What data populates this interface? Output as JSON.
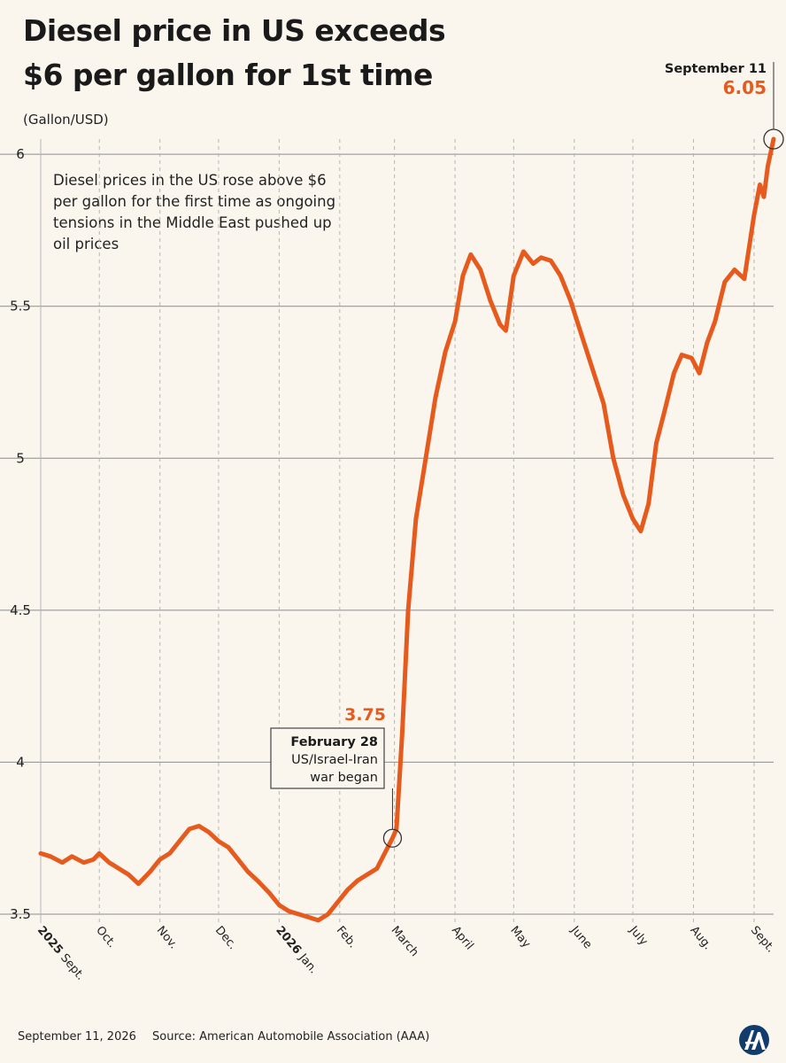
{
  "header": {
    "title_line1": "Diesel price in US exceeds",
    "title_line2": "$6 per gallon for 1st time",
    "unit_label": "(Gallon/USD)",
    "annotation": "Diesel prices in the US rose above $6 per gallon for the first time as ongoing tensions in the Middle East pushed up oil prices"
  },
  "footer": {
    "date": "September 11, 2026",
    "source": "Source: American Automobile Association (AAA)"
  },
  "colors": {
    "line": "#e65a1e",
    "grid": "#8c8c8c",
    "background": "#faf6ee"
  },
  "logo_icon": "aa-logo-icon",
  "chart_data": {
    "type": "line",
    "title": "Diesel price in US exceeds $6 per gallon for 1st time",
    "ylabel": "(Gallon/USD)",
    "xlabel": "",
    "ylim": [
      3.5,
      6.05
    ],
    "yticks": [
      3.5,
      4,
      4.5,
      5,
      5.5,
      6
    ],
    "ytick_labels": [
      "3.5",
      "4",
      "4.5",
      "5",
      "5.5",
      "6"
    ],
    "grid": "horizontal and vertical dashed",
    "xlim": [
      "2025-09-01",
      "2026-09-11"
    ],
    "xticks": [
      {
        "date": "2025-09-01",
        "label": "Sept.",
        "year": "2025"
      },
      {
        "date": "2025-10-01",
        "label": "Oct."
      },
      {
        "date": "2025-11-01",
        "label": "Nov."
      },
      {
        "date": "2025-12-01",
        "label": "Dec."
      },
      {
        "date": "2026-01-01",
        "label": "Jan.",
        "year": "2026"
      },
      {
        "date": "2026-02-01",
        "label": "Feb."
      },
      {
        "date": "2026-03-01",
        "label": "March"
      },
      {
        "date": "2026-04-01",
        "label": "April"
      },
      {
        "date": "2026-05-01",
        "label": "May"
      },
      {
        "date": "2026-06-01",
        "label": "June"
      },
      {
        "date": "2026-07-01",
        "label": "July"
      },
      {
        "date": "2026-08-01",
        "label": "Aug."
      },
      {
        "date": "2026-09-01",
        "label": "Sept."
      }
    ],
    "series": [
      {
        "points": [
          [
            "2025-09-01",
            3.7
          ],
          [
            "2025-09-06",
            3.69
          ],
          [
            "2025-09-12",
            3.67
          ],
          [
            "2025-09-17",
            3.69
          ],
          [
            "2025-09-23",
            3.67
          ],
          [
            "2025-09-28",
            3.68
          ],
          [
            "2025-10-01",
            3.7
          ],
          [
            "2025-10-06",
            3.67
          ],
          [
            "2025-10-11",
            3.65
          ],
          [
            "2025-10-16",
            3.63
          ],
          [
            "2025-10-21",
            3.6
          ],
          [
            "2025-10-27",
            3.64
          ],
          [
            "2025-11-01",
            3.68
          ],
          [
            "2025-11-06",
            3.7
          ],
          [
            "2025-11-11",
            3.74
          ],
          [
            "2025-11-16",
            3.78
          ],
          [
            "2025-11-21",
            3.79
          ],
          [
            "2025-11-26",
            3.77
          ],
          [
            "2025-12-01",
            3.74
          ],
          [
            "2025-12-06",
            3.72
          ],
          [
            "2025-12-11",
            3.68
          ],
          [
            "2025-12-16",
            3.64
          ],
          [
            "2025-12-21",
            3.61
          ],
          [
            "2025-12-27",
            3.57
          ],
          [
            "2026-01-01",
            3.53
          ],
          [
            "2026-01-06",
            3.51
          ],
          [
            "2026-01-11",
            3.5
          ],
          [
            "2026-01-16",
            3.49
          ],
          [
            "2026-01-21",
            3.48
          ],
          [
            "2026-01-26",
            3.5
          ],
          [
            "2026-01-31",
            3.54
          ],
          [
            "2026-02-05",
            3.58
          ],
          [
            "2026-02-10",
            3.61
          ],
          [
            "2026-02-15",
            3.63
          ],
          [
            "2026-02-20",
            3.65
          ],
          [
            "2026-02-24",
            3.7
          ],
          [
            "2026-02-28",
            3.75
          ],
          [
            "2026-03-02",
            3.78
          ],
          [
            "2026-03-05",
            4.1
          ],
          [
            "2026-03-08",
            4.5
          ],
          [
            "2026-03-12",
            4.8
          ],
          [
            "2026-03-17",
            5.0
          ],
          [
            "2026-03-22",
            5.2
          ],
          [
            "2026-03-27",
            5.35
          ],
          [
            "2026-04-01",
            5.45
          ],
          [
            "2026-04-05",
            5.6
          ],
          [
            "2026-04-09",
            5.67
          ],
          [
            "2026-04-14",
            5.62
          ],
          [
            "2026-04-19",
            5.52
          ],
          [
            "2026-04-24",
            5.44
          ],
          [
            "2026-04-27",
            5.42
          ],
          [
            "2026-05-01",
            5.6
          ],
          [
            "2026-05-06",
            5.68
          ],
          [
            "2026-05-11",
            5.64
          ],
          [
            "2026-05-15",
            5.66
          ],
          [
            "2026-05-20",
            5.65
          ],
          [
            "2026-05-25",
            5.6
          ],
          [
            "2026-05-30",
            5.52
          ],
          [
            "2026-06-05",
            5.4
          ],
          [
            "2026-06-10",
            5.3
          ],
          [
            "2026-06-16",
            5.18
          ],
          [
            "2026-06-21",
            5.0
          ],
          [
            "2026-06-26",
            4.88
          ],
          [
            "2026-07-01",
            4.8
          ],
          [
            "2026-07-05",
            4.76
          ],
          [
            "2026-07-09",
            4.85
          ],
          [
            "2026-07-13",
            5.05
          ],
          [
            "2026-07-17",
            5.15
          ],
          [
            "2026-07-22",
            5.28
          ],
          [
            "2026-07-26",
            5.34
          ],
          [
            "2026-07-31",
            5.33
          ],
          [
            "2026-08-04",
            5.28
          ],
          [
            "2026-08-08",
            5.38
          ],
          [
            "2026-08-12",
            5.45
          ],
          [
            "2026-08-17",
            5.58
          ],
          [
            "2026-08-22",
            5.62
          ],
          [
            "2026-08-27",
            5.59
          ],
          [
            "2026-09-01",
            5.8
          ],
          [
            "2026-09-04",
            5.9
          ],
          [
            "2026-09-06",
            5.86
          ],
          [
            "2026-09-08",
            5.96
          ],
          [
            "2026-09-11",
            6.05
          ]
        ]
      }
    ],
    "annotations": [
      {
        "date": "2026-02-28",
        "value": 3.75,
        "value_label": "3.75",
        "date_label": "February 28",
        "note": "US/Israel-Iran war began"
      },
      {
        "date": "2026-09-11",
        "value": 6.05,
        "value_label": "6.05",
        "date_label": "September 11"
      }
    ]
  }
}
